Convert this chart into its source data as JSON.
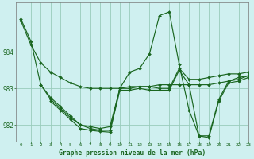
{
  "title": "Graphe pression niveau de la mer (hPa)",
  "background_color": "#cff0f0",
  "grid_color": "#99ccbb",
  "line_color": "#1a6620",
  "xlim": [
    -0.5,
    23
  ],
  "ylim": [
    981.55,
    985.35
  ],
  "yticks": [
    982,
    983,
    984
  ],
  "xticks": [
    0,
    1,
    2,
    3,
    4,
    5,
    6,
    7,
    8,
    9,
    10,
    11,
    12,
    13,
    14,
    15,
    16,
    17,
    18,
    19,
    20,
    21,
    22,
    23
  ],
  "series": [
    {
      "x": [
        0,
        1,
        2,
        3,
        4,
        5,
        6,
        7,
        8,
        9,
        10,
        11,
        12,
        13,
        14,
        15,
        16,
        17,
        18,
        19,
        20,
        21,
        22,
        23
      ],
      "y": [
        984.85,
        984.2,
        983.7,
        983.45,
        983.3,
        983.15,
        983.05,
        983.0,
        983.0,
        983.0,
        983.0,
        983.0,
        983.05,
        983.05,
        983.1,
        983.1,
        983.1,
        983.1,
        983.1,
        983.1,
        983.15,
        983.2,
        983.3,
        983.35
      ]
    },
    {
      "x": [
        2,
        3,
        4,
        5,
        6,
        7,
        8,
        9,
        10,
        11,
        12,
        13,
        14,
        15,
        16,
        17,
        18,
        19,
        20,
        21,
        22,
        23
      ],
      "y": [
        983.1,
        982.7,
        982.45,
        982.2,
        982.0,
        981.95,
        981.9,
        981.95,
        983.0,
        983.05,
        983.05,
        983.05,
        983.0,
        983.0,
        983.55,
        983.25,
        983.25,
        983.3,
        983.35,
        983.4,
        983.4,
        983.45
      ]
    },
    {
      "x": [
        0,
        1,
        2,
        3,
        4,
        5,
        6,
        7,
        8,
        9,
        10,
        11,
        12,
        13,
        14,
        15,
        16,
        17,
        18,
        19,
        20,
        21,
        22,
        23
      ],
      "y": [
        984.9,
        984.3,
        983.1,
        982.75,
        982.5,
        982.25,
        982.0,
        981.9,
        981.85,
        981.85,
        983.0,
        983.45,
        983.55,
        983.95,
        985.0,
        985.1,
        983.65,
        982.4,
        981.7,
        981.7,
        982.7,
        983.2,
        983.25,
        983.35
      ]
    },
    {
      "x": [
        3,
        4,
        5,
        6,
        7,
        8,
        9,
        10,
        11,
        12,
        13,
        14,
        15,
        16,
        17,
        18,
        19,
        20,
        21,
        22,
        23
      ],
      "y": [
        982.65,
        982.4,
        982.15,
        981.9,
        981.85,
        981.82,
        981.8,
        982.95,
        982.95,
        983.0,
        982.95,
        982.95,
        982.95,
        983.5,
        983.1,
        981.7,
        981.65,
        982.65,
        983.15,
        983.2,
        983.3
      ]
    }
  ]
}
